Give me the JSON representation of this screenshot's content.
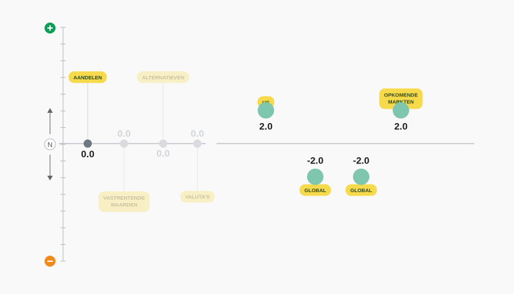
{
  "chart_data": {
    "type": "scatter",
    "title": "",
    "xlabel": "",
    "ylabel": "",
    "ylim": [
      -7,
      7
    ],
    "neutral_label": "N",
    "colors": {
      "positive_marker": "#0d9d58",
      "negative_marker": "#f08a1c",
      "label_bg": "#f7d94c",
      "label_bg_faded": "#f8efc4",
      "label_text": "#2d4a1e",
      "label_text_faded": "#c9c3a3",
      "point_primary": "#6f7780",
      "point_faded": "#d9dbde",
      "point_region": "#7fc6ae",
      "axis": "#b8bcc2"
    },
    "points": [
      {
        "label": "AANDELEN",
        "value_text": "0.0",
        "value": 0.0,
        "label_side": "above",
        "label_level": 4,
        "style": "primary"
      },
      {
        "label": "VASTRENTENDE\nWAARDEN",
        "value_text": "0.0",
        "value": 0.0,
        "label_side": "below",
        "label_level": 3.5,
        "style": "faded"
      },
      {
        "label": "ALTERNATIEVEN",
        "value_text": "0.0",
        "value": 0.0,
        "label_side": "above",
        "label_level": 4,
        "style": "faded"
      },
      {
        "label": "VALUTA'S",
        "value_text": "0.0",
        "value": 0.0,
        "label_side": "below",
        "label_level": 3.2,
        "style": "faded"
      },
      {
        "label": "US",
        "value_text": "2.0",
        "value": 2.0,
        "label_side": "above",
        "label_level": 2.5,
        "style": "region"
      },
      {
        "label": "GLOBAL",
        "value_text": "-2.0",
        "value": -2.0,
        "label_side": "below",
        "label_level": 2.8,
        "style": "region"
      },
      {
        "label": "GLOBAL",
        "value_text": "-2.0",
        "value": -2.0,
        "label_side": "below",
        "label_level": 2.8,
        "style": "region"
      },
      {
        "label": "OPKOMENDE\nMARKTEN",
        "value_text": "2.0",
        "value": 2.0,
        "label_side": "above",
        "label_level": 2.7,
        "style": "region"
      }
    ]
  }
}
